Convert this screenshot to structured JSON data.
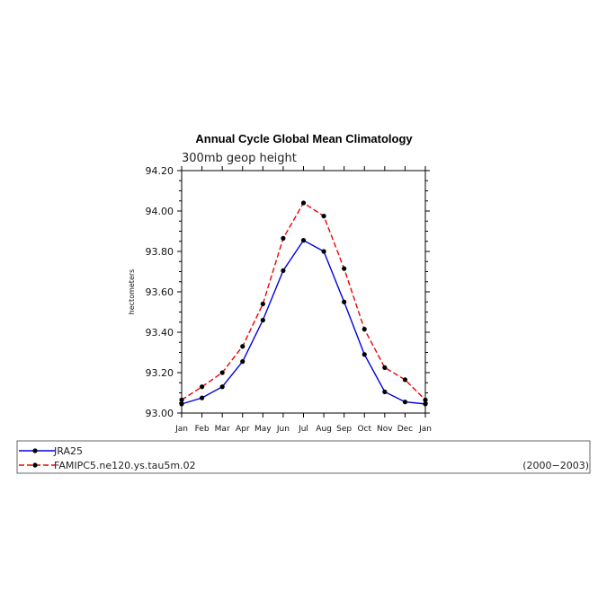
{
  "chart_data": {
    "type": "line",
    "title": "Annual Cycle Global Mean Climatology",
    "subtitle": "300mb  geop  height",
    "xlabel": "",
    "ylabel": "hectometers",
    "categories": [
      "Jan",
      "Feb",
      "Mar",
      "Apr",
      "May",
      "Jun",
      "Jul",
      "Aug",
      "Sep",
      "Oct",
      "Nov",
      "Dec",
      "Jan"
    ],
    "ylim": [
      93.0,
      94.2
    ],
    "yticks": [
      "93.00",
      "93.20",
      "93.40",
      "93.60",
      "93.80",
      "94.00",
      "94.20"
    ],
    "series": [
      {
        "name": "JRA25",
        "color": "#0000dd",
        "style": "solid",
        "values": [
          93.045,
          93.075,
          93.13,
          93.255,
          93.46,
          93.705,
          93.855,
          93.8,
          93.55,
          93.29,
          93.105,
          93.055,
          93.045
        ]
      },
      {
        "name": "FAMIPC5.ne120.ys.tau5m.02",
        "color": "#ee0000",
        "style": "dashed",
        "values": [
          93.065,
          93.13,
          93.2,
          93.33,
          93.54,
          93.865,
          94.04,
          93.975,
          93.715,
          93.415,
          93.225,
          93.165,
          93.065
        ]
      }
    ],
    "legend": {
      "placement": "bottom",
      "period": "(2000−2003)"
    },
    "grid": false
  }
}
